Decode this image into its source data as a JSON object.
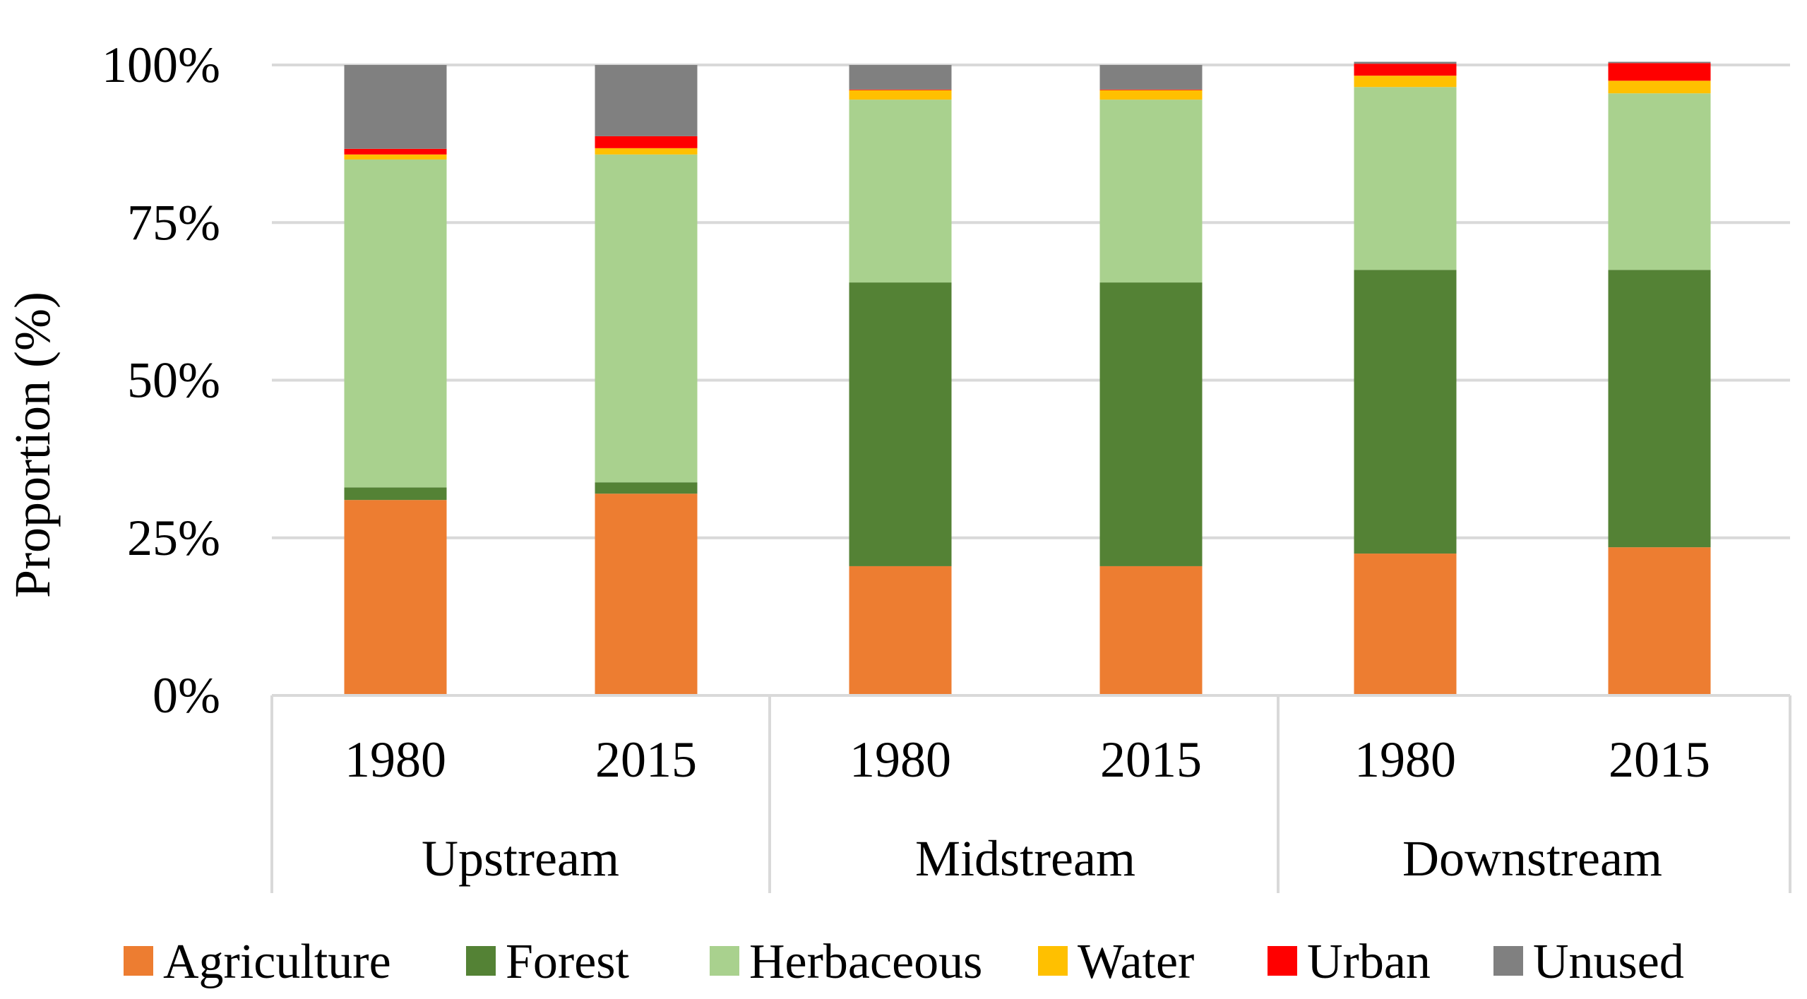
{
  "chart_data": {
    "type": "stacked-bar",
    "title": "",
    "xlabel": "",
    "ylabel": "Proportion (%)",
    "ylim": [
      0,
      100
    ],
    "yticks": [
      "0%",
      "25%",
      "50%",
      "75%",
      "100%"
    ],
    "ytick_values": [
      0,
      25,
      50,
      75,
      100
    ],
    "grid": true,
    "legend_position": "bottom",
    "groups": [
      {
        "name": "Upstream",
        "categories": [
          "1980",
          "2015"
        ]
      },
      {
        "name": "Midstream",
        "categories": [
          "1980",
          "2015"
        ]
      },
      {
        "name": "Downstream",
        "categories": [
          "1980",
          "2015"
        ]
      }
    ],
    "categories": [
      "1980",
      "2015",
      "1980",
      "2015",
      "1980",
      "2015"
    ],
    "series": [
      {
        "name": "Agriculture",
        "color": "#ED7D31",
        "values": [
          31.0,
          32.0,
          20.5,
          20.5,
          22.5,
          23.5
        ]
      },
      {
        "name": "Forest",
        "color": "#548235",
        "values": [
          2.0,
          1.8,
          45.0,
          45.0,
          45.0,
          44.0
        ]
      },
      {
        "name": "Herbaceous",
        "color": "#A9D18E",
        "values": [
          52.0,
          52.0,
          29.0,
          29.0,
          29.0,
          28.0
        ]
      },
      {
        "name": "Water",
        "color": "#FFC000",
        "values": [
          0.8,
          1.0,
          1.5,
          1.5,
          1.8,
          2.0
        ]
      },
      {
        "name": "Urban",
        "color": "#FF0000",
        "values": [
          0.9,
          1.9,
          0.1,
          0.1,
          1.9,
          2.8
        ]
      },
      {
        "name": "Unused",
        "color": "#808080",
        "values": [
          13.3,
          11.3,
          3.9,
          3.9,
          0.3,
          0.2
        ]
      }
    ]
  }
}
